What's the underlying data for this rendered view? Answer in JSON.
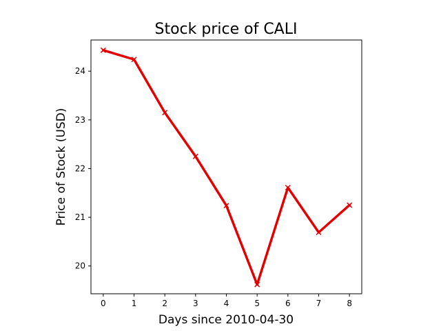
{
  "chart_data": {
    "type": "line",
    "title": "Stock price of CALI",
    "xlabel": "Days since 2010-04-30",
    "ylabel": "Price of Stock (USD)",
    "x": [
      0,
      1,
      2,
      3,
      4,
      5,
      6,
      7,
      8
    ],
    "xticks": [
      "0",
      "1",
      "2",
      "3",
      "4",
      "5",
      "6",
      "7",
      "8"
    ],
    "yticks": [
      "20",
      "21",
      "22",
      "23",
      "24"
    ],
    "xlim": [
      -0.4,
      8.4
    ],
    "ylim": [
      19.43,
      24.64
    ],
    "grid": false,
    "series": [
      {
        "values": [
          24.43,
          24.24,
          23.15,
          22.25,
          21.24,
          19.62,
          21.61,
          20.69,
          21.25
        ],
        "color": "#e50000",
        "marker": "x"
      }
    ]
  }
}
